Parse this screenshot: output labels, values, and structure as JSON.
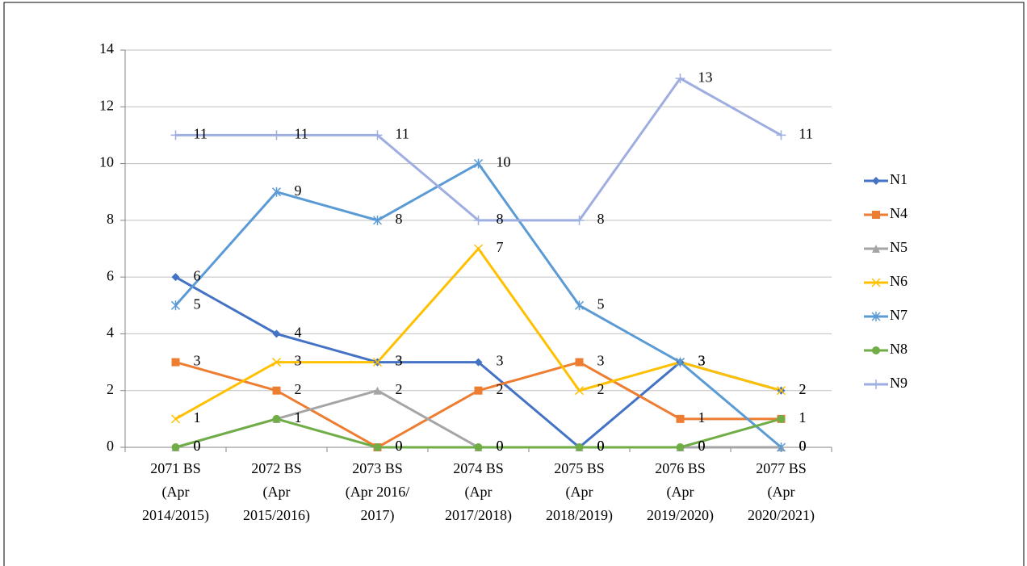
{
  "chart_data": {
    "type": "line",
    "categories": [
      [
        "2071 BS",
        "(Apr",
        "2014/2015)"
      ],
      [
        "2072 BS",
        "(Apr",
        "2015/2016)"
      ],
      [
        "2073 BS",
        "(Apr 2016/",
        "2017)"
      ],
      [
        "2074 BS",
        "(Apr",
        "2017/2018)"
      ],
      [
        "2075 BS",
        "(Apr",
        "2018/2019)"
      ],
      [
        "2076 BS",
        "(Apr",
        "2019/2020)"
      ],
      [
        "2077 BS",
        "(Apr",
        "2020/2021)"
      ]
    ],
    "series": [
      {
        "name": "N1",
        "color": "#4472c4",
        "marker": "diamond",
        "values": [
          6,
          4,
          3,
          3,
          0,
          3,
          2
        ]
      },
      {
        "name": "N4",
        "color": "#ed7d31",
        "marker": "square",
        "values": [
          3,
          2,
          0,
          2,
          3,
          1,
          1
        ]
      },
      {
        "name": "N5",
        "color": "#a5a5a5",
        "marker": "triangle",
        "values": [
          0,
          1,
          2,
          0,
          0,
          0,
          0
        ]
      },
      {
        "name": "N6",
        "color": "#ffc000",
        "marker": "x",
        "values": [
          1,
          3,
          3,
          7,
          2,
          3,
          2
        ]
      },
      {
        "name": "N7",
        "color": "#5b9bd5",
        "marker": "star",
        "values": [
          5,
          9,
          8,
          10,
          5,
          3,
          0
        ]
      },
      {
        "name": "N8",
        "color": "#70ad47",
        "marker": "circle",
        "values": [
          0,
          1,
          0,
          0,
          0,
          0,
          1
        ]
      },
      {
        "name": "N9",
        "color": "#9eaee0",
        "marker": "plus",
        "values": [
          11,
          11,
          11,
          8,
          8,
          13,
          11
        ]
      }
    ],
    "ylim": [
      0,
      14
    ],
    "yticks": [
      0,
      2,
      4,
      6,
      8,
      10,
      12,
      14
    ],
    "grid": true,
    "legend": "right"
  }
}
